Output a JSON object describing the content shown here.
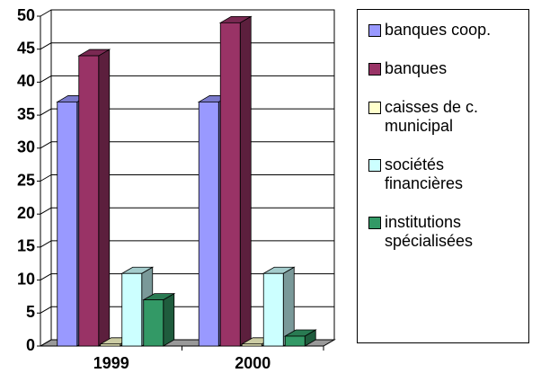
{
  "chart_data": {
    "type": "bar3d",
    "categories": [
      "1999",
      "2000"
    ],
    "series": [
      {
        "name": "banques coop.",
        "color": "#9999ff",
        "values": [
          37,
          37
        ]
      },
      {
        "name": "banques",
        "color": "#993366",
        "values": [
          44,
          49
        ]
      },
      {
        "name": "caisses de c. municipal",
        "color": "#ffffcc",
        "values": [
          0.3,
          0.3
        ]
      },
      {
        "name": "sociétés financières",
        "color": "#ccffff",
        "values": [
          11,
          11
        ]
      },
      {
        "name": "institutions spécialisées",
        "color": "#339966",
        "values": [
          7,
          1.5
        ]
      }
    ],
    "ylim": [
      0,
      50
    ],
    "yticks": [
      0,
      5,
      10,
      15,
      20,
      25,
      30,
      35,
      40,
      45,
      50
    ],
    "grid": true,
    "legend": "right"
  }
}
